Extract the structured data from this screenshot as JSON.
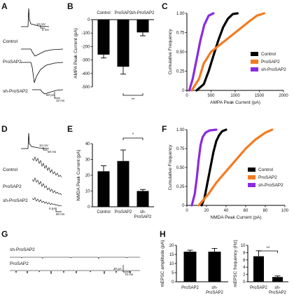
{
  "colors": {
    "control": "#000000",
    "prosap2": "#f47b20",
    "sh_prosap2": "#8a2be2"
  },
  "panel_labels": {
    "A": "A",
    "B": "B",
    "C": "C",
    "D": "D",
    "E": "E",
    "F": "F",
    "G": "G",
    "H": "H"
  },
  "traces": {
    "control": "Control",
    "prosap2": "ProSAP2",
    "sh_prosap2": "sh-ProSAP2",
    "scale_a_top": "10 mV",
    "scale_a_top_t": "5 ms",
    "scale_a_bottom": "50 pA",
    "scale_a_bottom_t": "10 ms",
    "scale_d_top": "10 mV",
    "scale_d_top_t": "50 ms",
    "scale_d_bottom": "5 pA",
    "scale_d_bottom_t": "50 ms",
    "scale_g": "30 pA",
    "scale_g_t": "70 ms"
  },
  "chart_data": [
    {
      "panel": "B",
      "type": "bar",
      "categories": [
        "Control",
        "ProSAP2",
        "sh-ProSAP2"
      ],
      "values": [
        -260,
        -350,
        -95
      ],
      "errors": [
        25,
        55,
        25
      ],
      "ylabel": "AMPA Peak Current (pA)",
      "ylim": [
        -500,
        0
      ],
      "yticks": [
        "0",
        "-100",
        "-200",
        "-300",
        "-400",
        "-500"
      ],
      "significance": "**",
      "significance_between": [
        "ProSAP2",
        "sh-ProSAP2"
      ]
    },
    {
      "panel": "C",
      "type": "line",
      "xlabel": "AMPA Peak Current (pA)",
      "ylabel": "Cumulative Frequency",
      "xlim": [
        0,
        2000
      ],
      "ylim": [
        0,
        1.0
      ],
      "xticks": [
        "0",
        "500",
        "1000",
        "1500",
        "2000"
      ],
      "yticks": [
        "0",
        "0.25",
        "0.50",
        "0.75",
        "1.00"
      ],
      "legend_position": "right",
      "series": [
        {
          "name": "Control",
          "color": "#000000",
          "x": [
            200,
            350,
            450,
            550,
            650,
            750,
            850,
            950,
            1050
          ],
          "y": [
            0,
            0.08,
            0.25,
            0.45,
            0.65,
            0.82,
            0.93,
            0.99,
            1.0
          ]
        },
        {
          "name": "ProSAP2",
          "color": "#f47b20",
          "x": [
            100,
            250,
            350,
            500,
            700,
            900,
            1100,
            1300,
            1450,
            1600
          ],
          "y": [
            0,
            0.15,
            0.35,
            0.5,
            0.6,
            0.7,
            0.8,
            0.9,
            0.97,
            1.0
          ]
        },
        {
          "name": "sh-ProSAP2",
          "color": "#8a2be2",
          "x": [
            50,
            120,
            200,
            280,
            360,
            450,
            550
          ],
          "y": [
            0,
            0.15,
            0.4,
            0.65,
            0.85,
            0.97,
            1.0
          ]
        }
      ]
    },
    {
      "panel": "E",
      "type": "bar",
      "categories": [
        "Control",
        "ProSAP2",
        "sh-ProSAP2"
      ],
      "values": [
        22.5,
        29,
        10
      ],
      "errors": [
        3.5,
        7,
        1
      ],
      "ylabel": "NMDA Peak Current (pA)",
      "ylim": [
        0,
        40
      ],
      "yticks": [
        "0",
        "10",
        "20",
        "30",
        "40"
      ],
      "significance": "*",
      "significance_between": [
        "ProSAP2",
        "sh-ProSAP2"
      ]
    },
    {
      "panel": "F",
      "type": "line",
      "xlabel": "NMDA Peak Current (pA)",
      "ylabel": "Cumulative Frequency",
      "xlim": [
        0,
        100
      ],
      "ylim": [
        0,
        1.0
      ],
      "xticks": [
        "0",
        "20",
        "40",
        "60",
        "80",
        "100"
      ],
      "yticks": [
        "0",
        "0.25",
        "0.50",
        "0.75",
        "1.00"
      ],
      "legend_position": "right",
      "series": [
        {
          "name": "Control",
          "color": "#000000",
          "x": [
            15,
            18,
            21,
            24,
            27,
            30,
            33,
            36,
            40
          ],
          "y": [
            0,
            0.1,
            0.3,
            0.5,
            0.7,
            0.85,
            0.93,
            0.98,
            1.0
          ]
        },
        {
          "name": "ProSAP2",
          "color": "#f47b20",
          "x": [
            12,
            22,
            30,
            40,
            50,
            60,
            70,
            80,
            87
          ],
          "y": [
            0,
            0.15,
            0.3,
            0.45,
            0.6,
            0.75,
            0.87,
            0.96,
            1.0
          ]
        },
        {
          "name": "sh-ProSAP2",
          "color": "#8a2be2",
          "x": [
            5,
            8,
            10,
            12,
            14,
            16,
            19,
            23,
            30
          ],
          "y": [
            0,
            0.15,
            0.35,
            0.6,
            0.8,
            0.9,
            0.96,
            0.99,
            1.0
          ]
        }
      ]
    },
    {
      "panel": "H1",
      "type": "bar",
      "categories": [
        "ProSAP2",
        "sh-ProSAP2"
      ],
      "values": [
        16.5,
        16.5
      ],
      "errors": [
        0.8,
        1.8
      ],
      "ylabel": "mEPSC amplitude (pA)",
      "ylim": [
        0,
        20
      ],
      "yticks": [
        "0",
        "5",
        "10",
        "15",
        "20"
      ]
    },
    {
      "panel": "H2",
      "type": "bar",
      "categories": [
        "ProSAP2",
        "sh-ProSAP2"
      ],
      "values": [
        7,
        1.3
      ],
      "errors": [
        1.5,
        0.3
      ],
      "ylabel": "mEPSC frequency (Hz)",
      "ylim": [
        0,
        10
      ],
      "yticks": [
        "0",
        "2",
        "4",
        "6",
        "8",
        "10"
      ],
      "significance": "**",
      "significance_between": [
        "ProSAP2",
        "sh-ProSAP2"
      ]
    }
  ]
}
